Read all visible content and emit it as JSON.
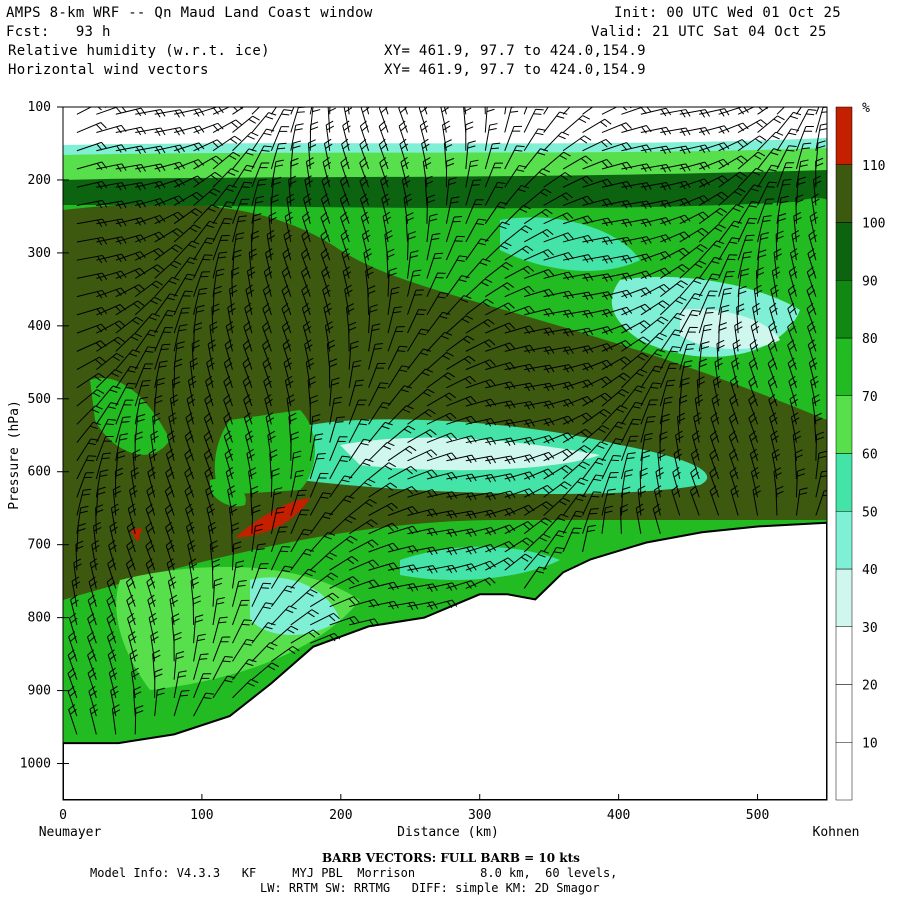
{
  "header": {
    "line1_left": "AMPS 8-km WRF -- Qn Maud Land Coast window",
    "line1_right": "Init: 00 UTC Wed 01 Oct 25",
    "line2_left": "Fcst:   93 h",
    "line2_right": "Valid: 21 UTC Sat 04 Oct 25",
    "line3_left": "Relative humidity (w.r.t. ice)",
    "line3_mid": "XY= 461.9, 97.7 to 424.0,154.9",
    "line4_left": "Horizontal wind vectors",
    "line4_mid": "XY= 461.9, 97.7 to 424.0,154.9"
  },
  "footer": {
    "barb_title": "BARB VECTORS:  FULL BARB = 10 kts",
    "model_info": "Model Info: V4.3.3   KF     MYJ PBL  Morrison         8.0 km,  60 levels,",
    "physics": "LW: RRTM SW: RRTMG   DIFF: simple KM: 2D Smagor",
    "left_end": "Neumayer",
    "right_end": "Kohnen"
  },
  "chart_data": {
    "type": "heatmap",
    "title": "Relative humidity (w.r.t. ice)",
    "xlabel": "Distance (km)",
    "ylabel": "Pressure (hPa)",
    "x_range": [
      0,
      550
    ],
    "y_range": [
      1050,
      100
    ],
    "x_ticks": [
      0,
      100,
      200,
      300,
      400,
      500
    ],
    "y_ticks": [
      100,
      200,
      300,
      400,
      500,
      600,
      700,
      800,
      900,
      1000
    ],
    "colorbar": {
      "unit": "%",
      "levels": [
        10,
        20,
        30,
        40,
        50,
        60,
        70,
        80,
        90,
        100,
        110
      ],
      "colors": [
        "#ffffff",
        "#ffffff",
        "#ffffff",
        "#cff7ee",
        "#7fefd6",
        "#44e3a8",
        "#57e04b",
        "#22bb22",
        "#118811",
        "#0d6410",
        "#3d5910",
        "#c42000"
      ]
    },
    "terrain": {
      "distance_km": [
        0,
        40,
        80,
        120,
        150,
        180,
        220,
        260,
        300,
        320,
        340,
        360,
        380,
        420,
        460,
        500,
        550
      ],
      "surface_hPa": [
        972,
        972,
        960,
        935,
        890,
        840,
        812,
        800,
        768,
        768,
        775,
        738,
        720,
        697,
        683,
        675,
        670
      ]
    }
  }
}
